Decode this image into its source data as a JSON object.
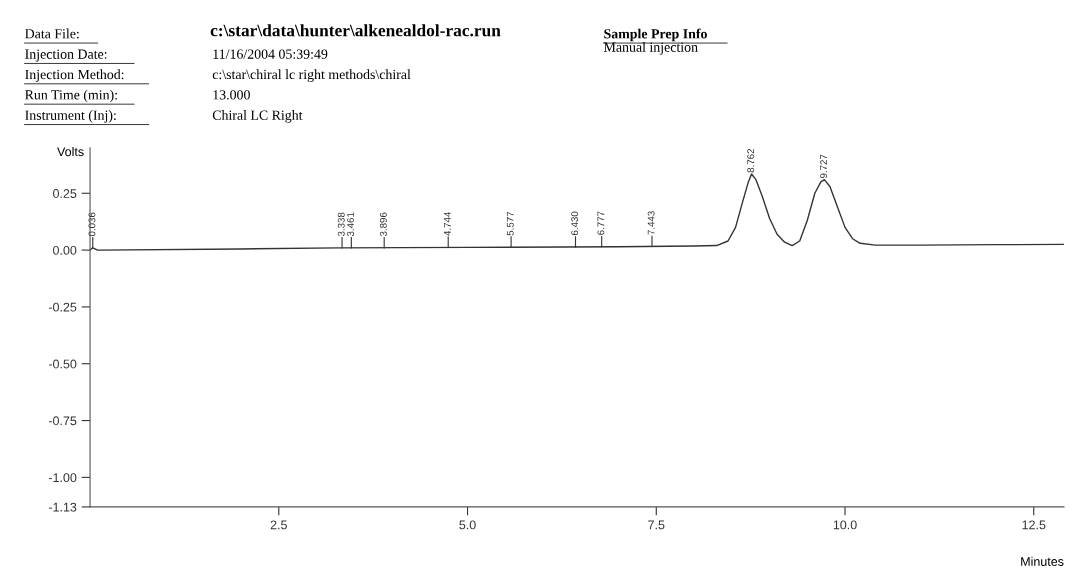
{
  "chart_data": {
    "type": "line",
    "title": "c:\\star\\data\\hunter\\alkenealdol-rac.run",
    "annotations": [
      "Data File:",
      "Injection Date:",
      "Injection Method:",
      "Run Time (min):",
      "Instrument (Inj):",
      "11/16/2004 05:39:49",
      "c:\\star\\chiral lc right methods\\chiral",
      "13.000",
      "Chiral LC Right",
      "Sample Prep Info",
      "Manual injection",
      {
        "text": "0.036",
        "x": 0.036,
        "y": 0.01
      },
      {
        "text": "3.338",
        "x": 3.338,
        "y": 0.01
      },
      {
        "text": "3.461",
        "x": 3.461,
        "y": 0.01
      },
      {
        "text": "3.896",
        "x": 3.896,
        "y": 0.01
      },
      {
        "text": "4.744",
        "x": 4.744,
        "y": 0.012
      },
      {
        "text": "5.577",
        "x": 5.577,
        "y": 0.013
      },
      {
        "text": "6.430",
        "x": 6.43,
        "y": 0.014
      },
      {
        "text": "6.777",
        "x": 6.777,
        "y": 0.015
      },
      {
        "text": "7.443",
        "x": 7.443,
        "y": 0.016
      },
      {
        "text": "8.762",
        "x": 8.762,
        "y": 0.335
      },
      {
        "text": "9.727",
        "x": 9.727,
        "y": 0.31
      }
    ],
    "xlabel": "Minutes",
    "ylabel": "Volts",
    "x": [
      0,
      0.036,
      0.1,
      2,
      3.3,
      5,
      7,
      8.0,
      8.3,
      8.45,
      8.55,
      8.65,
      8.72,
      8.762,
      8.82,
      8.9,
      9.0,
      9.1,
      9.2,
      9.3,
      9.4,
      9.5,
      9.6,
      9.68,
      9.727,
      9.8,
      9.9,
      10.0,
      10.1,
      10.2,
      10.4,
      11,
      12,
      12.9
    ],
    "series": [
      {
        "color": "#333333",
        "values": [
          0.0,
          0.01,
          0.0,
          0.005,
          0.01,
          0.012,
          0.015,
          0.018,
          0.02,
          0.04,
          0.1,
          0.22,
          0.3,
          0.335,
          0.31,
          0.24,
          0.14,
          0.07,
          0.035,
          0.02,
          0.04,
          0.13,
          0.25,
          0.3,
          0.31,
          0.28,
          0.19,
          0.1,
          0.05,
          0.03,
          0.022,
          0.022,
          0.024,
          0.025
        ]
      }
    ],
    "xlim": [
      0,
      12.9
    ],
    "xticks": [
      2.5,
      {
        "value": 5,
        "label": "5.0"
      },
      7.5,
      {
        "value": 10,
        "label": "10.0"
      },
      12.5
    ],
    "ylim": [
      -1.13,
      0.45
    ],
    "yticks": [
      -1.13,
      {
        "value": -1.0,
        "label": "-1.00"
      },
      -0.75,
      {
        "value": -0.5,
        "label": "-0.50"
      },
      -0.25,
      {
        "value": 0,
        "label": "0.00"
      },
      0.25
    ],
    "grid": false,
    "marker": "none",
    "line_style": "solid"
  }
}
